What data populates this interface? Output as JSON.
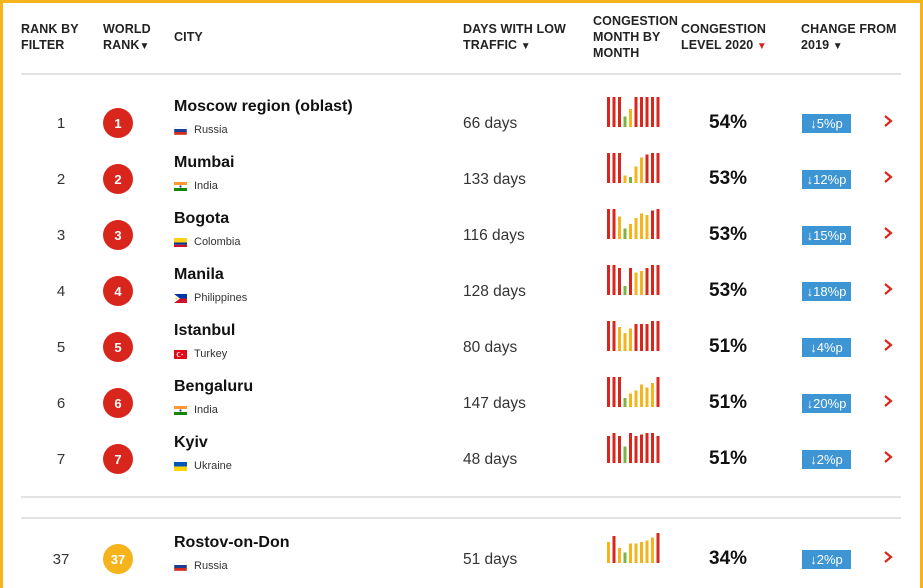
{
  "colors": {
    "accent": "#d9261c",
    "gold": "#f5b31c",
    "change_bg": "#3e95d3",
    "bar_low": "#f5b31c",
    "bar_min": "#7cb342"
  },
  "header": {
    "rank_filter": [
      "RANK BY",
      "FILTER"
    ],
    "world_rank": [
      "WORLD",
      "RANK"
    ],
    "city": "CITY",
    "days_low": [
      "DAYS WITH LOW",
      "TRAFFIC"
    ],
    "congestion_month": [
      "CONGESTION",
      "MONTH BY",
      "MONTH"
    ],
    "congestion_level": [
      "CONGESTION",
      "LEVEL 2020"
    ],
    "change": [
      "CHANGE FROM",
      "2019"
    ],
    "sort_arrow": "▼"
  },
  "rows": [
    {
      "rank_filter": "1",
      "world_rank": "1",
      "city": "Moscow region (oblast)",
      "country": "Russia",
      "flag": "russia-flag",
      "days": "66 days",
      "level": "54%",
      "change": "↓5%p",
      "months": [
        1.0,
        1.0,
        1.0,
        0.35,
        0.6,
        1.0,
        1.0,
        1.0,
        1.0,
        1.0
      ]
    },
    {
      "rank_filter": "2",
      "world_rank": "2",
      "city": "Mumbai",
      "country": "India",
      "flag": "india-flag",
      "days": "133 days",
      "level": "53%",
      "change": "↓12%p",
      "months": [
        1.0,
        1.0,
        1.0,
        0.25,
        0.2,
        0.55,
        0.85,
        0.95,
        1.0,
        1.0
      ]
    },
    {
      "rank_filter": "3",
      "world_rank": "3",
      "city": "Bogota",
      "country": "Colombia",
      "flag": "colombia-flag",
      "days": "116 days",
      "level": "53%",
      "change": "↓15%p",
      "months": [
        1.0,
        1.0,
        0.75,
        0.35,
        0.5,
        0.7,
        0.85,
        0.8,
        0.95,
        1.0
      ]
    },
    {
      "rank_filter": "4",
      "world_rank": "4",
      "city": "Manila",
      "country": "Philippines",
      "flag": "philippines-flag",
      "days": "128 days",
      "level": "53%",
      "change": "↓18%p",
      "months": [
        1.0,
        1.0,
        0.9,
        0.3,
        0.9,
        0.75,
        0.8,
        0.9,
        1.0,
        1.0
      ]
    },
    {
      "rank_filter": "5",
      "world_rank": "5",
      "city": "Istanbul",
      "country": "Turkey",
      "flag": "turkey-flag",
      "days": "80 days",
      "level": "51%",
      "change": "↓4%p",
      "months": [
        1.0,
        1.0,
        0.8,
        0.6,
        0.75,
        0.9,
        0.9,
        0.9,
        1.0,
        1.0
      ]
    },
    {
      "rank_filter": "6",
      "world_rank": "6",
      "city": "Bengaluru",
      "country": "India",
      "flag": "india-flag",
      "days": "147 days",
      "level": "51%",
      "change": "↓20%p",
      "months": [
        1.0,
        1.0,
        1.0,
        0.3,
        0.45,
        0.55,
        0.75,
        0.65,
        0.8,
        1.0
      ]
    },
    {
      "rank_filter": "7",
      "world_rank": "7",
      "city": "Kyiv",
      "country": "Ukraine",
      "flag": "ukraine-flag",
      "days": "48 days",
      "level": "51%",
      "change": "↓2%p",
      "months": [
        0.9,
        1.0,
        0.9,
        0.55,
        1.0,
        0.9,
        0.95,
        1.0,
        1.0,
        0.9
      ]
    },
    {
      "rank_filter": "37",
      "world_rank": "37",
      "city": "Rostov-on-Don",
      "country": "Russia",
      "flag": "russia-flag",
      "days": "51 days",
      "level": "34%",
      "change": "↓2%p",
      "months": [
        0.7,
        0.9,
        0.5,
        0.35,
        0.65,
        0.65,
        0.7,
        0.75,
        0.85,
        1.0
      ],
      "highlight": true
    }
  ]
}
